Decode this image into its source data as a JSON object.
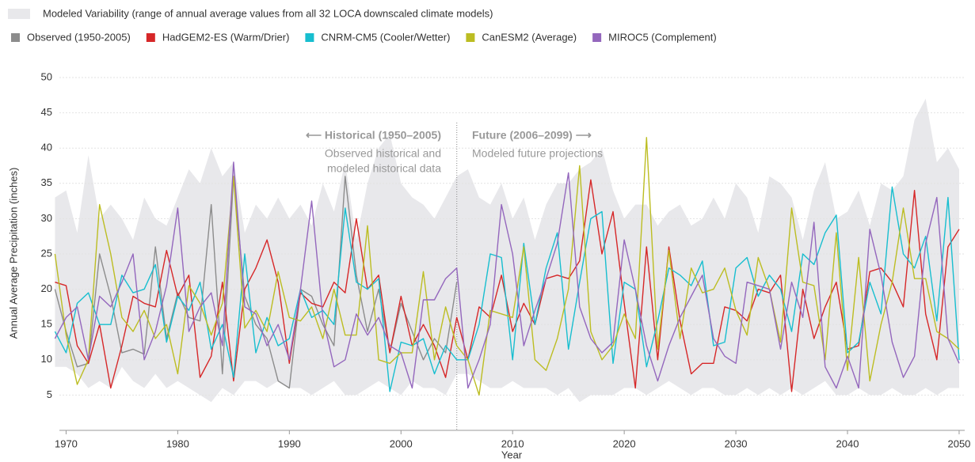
{
  "chart_data": {
    "type": "line",
    "x_label": "Year",
    "y_label": "Annual Average Precipitation (inches)",
    "x": [
      1969,
      1970,
      1971,
      1972,
      1973,
      1974,
      1975,
      1976,
      1977,
      1978,
      1979,
      1980,
      1981,
      1982,
      1983,
      1984,
      1985,
      1986,
      1987,
      1988,
      1989,
      1990,
      1991,
      1992,
      1993,
      1994,
      1995,
      1996,
      1997,
      1998,
      1999,
      2000,
      2001,
      2002,
      2003,
      2004,
      2005,
      2006,
      2007,
      2008,
      2009,
      2010,
      2011,
      2012,
      2013,
      2014,
      2015,
      2016,
      2017,
      2018,
      2019,
      2020,
      2021,
      2022,
      2023,
      2024,
      2025,
      2026,
      2027,
      2028,
      2029,
      2030,
      2031,
      2032,
      2033,
      2034,
      2035,
      2036,
      2037,
      2038,
      2039,
      2040,
      2041,
      2042,
      2043,
      2044,
      2045,
      2046,
      2047,
      2048,
      2049,
      2050
    ],
    "xlim": [
      1969.4,
      2050.5
    ],
    "xticks": [
      1970,
      1980,
      1990,
      2000,
      2010,
      2020,
      2030,
      2040,
      2050
    ],
    "ylim": [
      0,
      50
    ],
    "yticks": [
      5,
      10,
      15,
      20,
      25,
      30,
      35,
      40,
      45,
      50
    ],
    "grid": true,
    "divider_x": 2005,
    "annotations": [
      "⟵ Historical (1950–2005)",
      "Observed historical and",
      "modeled historical data",
      "Future (2006–2099) ⟶",
      "Modeled future projections"
    ],
    "band": {
      "name": "Modeled Variability (range of annual average values from all 32 LOCA downscaled climate models)",
      "color": "#e8e8eb",
      "max": [
        33,
        34,
        28,
        39,
        30,
        32,
        30,
        27,
        33,
        30,
        29,
        33,
        37,
        35,
        40,
        36,
        38,
        28,
        32,
        30,
        33,
        30,
        32,
        29,
        35,
        31,
        38,
        27,
        35,
        40,
        42,
        35,
        33,
        32,
        30,
        33,
        36,
        37,
        33,
        32,
        35,
        30,
        33,
        27,
        32,
        35,
        35,
        37,
        38,
        40,
        34,
        30,
        32,
        32,
        29,
        31,
        32,
        29,
        30,
        33,
        30,
        35,
        33,
        28,
        36,
        35,
        33,
        27,
        34,
        38,
        30,
        31,
        34,
        29,
        35,
        34,
        36,
        44,
        47,
        38,
        40,
        37
      ],
      "min": [
        9,
        9,
        8,
        6,
        7,
        6,
        9,
        7,
        6,
        8,
        6,
        7,
        6,
        5,
        4,
        6,
        5,
        7,
        7,
        6,
        7,
        6,
        6,
        5,
        6,
        7,
        5,
        5,
        6,
        7,
        6,
        5,
        7,
        6,
        6,
        5,
        8,
        8,
        7,
        6,
        6,
        7,
        6,
        6,
        6,
        5,
        6,
        4,
        5,
        5,
        5,
        6,
        6,
        5,
        6,
        7,
        6,
        5,
        6,
        6,
        5,
        5,
        6,
        5,
        6,
        5,
        6,
        5,
        6,
        7,
        5,
        5,
        6,
        5,
        5,
        6,
        5,
        5,
        6,
        5,
        6,
        6
      ]
    },
    "series": [
      {
        "name": "Observed (1950-2005)",
        "color": "#8c8c8c",
        "values": [
          20,
          14,
          9,
          9.5,
          25,
          19,
          11,
          11.5,
          10.8,
          26,
          13,
          19.5,
          16,
          15.5,
          32,
          8,
          36,
          19,
          15,
          13,
          7,
          6,
          20,
          19,
          15,
          12,
          36,
          22,
          14,
          20,
          11,
          18,
          14,
          10,
          13,
          11,
          21,
          null,
          null,
          null,
          null,
          null,
          null,
          null,
          null,
          null,
          null,
          null,
          null,
          null,
          null,
          null,
          null,
          null,
          null,
          null,
          null,
          null,
          null,
          null,
          null,
          null,
          null,
          null,
          null,
          null,
          null,
          null,
          null,
          null,
          null,
          null,
          null,
          null,
          null,
          null,
          null,
          null,
          null,
          null,
          null,
          null
        ]
      },
      {
        "name": "HadGEM2-ES (Warm/Drier)",
        "color": "#d62728",
        "values": [
          21,
          20.5,
          12,
          9.5,
          15,
          6,
          12,
          19,
          18,
          17.5,
          25.5,
          19,
          22,
          7.5,
          10.5,
          21,
          7,
          20,
          23,
          27,
          21,
          9.5,
          19.5,
          18,
          17.5,
          21,
          19.5,
          30,
          20,
          22,
          11,
          19,
          12,
          15,
          12,
          7.5,
          16,
          10,
          17.5,
          16,
          22,
          14,
          18,
          15,
          21.5,
          22,
          21.5,
          24,
          35.5,
          25,
          31,
          18,
          6,
          26,
          10,
          26,
          15.5,
          8,
          9.5,
          9.5,
          17.5,
          17,
          15.5,
          20,
          19.5,
          22,
          5.5,
          20,
          13,
          17.5,
          21,
          11.5,
          12,
          22.5,
          23,
          21,
          17.5,
          34,
          16.5,
          10,
          26,
          28.5
        ]
      },
      {
        "name": "CNRM-CM5 (Cooler/Wetter)",
        "color": "#17becf",
        "values": [
          14,
          11,
          18,
          19.5,
          15,
          15,
          22,
          19.5,
          20,
          23.5,
          12.5,
          19,
          17,
          21,
          11.5,
          15,
          7.5,
          25,
          11,
          16,
          12,
          13,
          20,
          16,
          17,
          15,
          31.5,
          21,
          20,
          21.5,
          5.5,
          12.5,
          12,
          13,
          8,
          12,
          10,
          10,
          15,
          25,
          24.5,
          10,
          26.5,
          15,
          23,
          28,
          11.5,
          21,
          30,
          31,
          9.5,
          21,
          20,
          9,
          15.5,
          23,
          22,
          20.5,
          24,
          12,
          12.5,
          23,
          24.5,
          19,
          22,
          20,
          14,
          25,
          23.5,
          28,
          30.5,
          11,
          12.5,
          21,
          16.5,
          34.5,
          25,
          23,
          27.5,
          15.5,
          33,
          10
        ]
      },
      {
        "name": "CanESM2 (Average)",
        "color": "#bcbd22",
        "values": [
          25,
          13.5,
          6.5,
          10,
          32,
          25,
          16,
          14,
          17,
          13,
          15,
          8,
          20.5,
          18,
          13.5,
          18,
          36,
          14.5,
          17,
          14,
          22.5,
          16,
          15.5,
          17.5,
          13,
          20,
          13.5,
          13.5,
          29,
          10,
          9.5,
          11,
          11,
          22.5,
          10,
          17.5,
          12,
          10,
          5,
          17,
          16.5,
          16,
          26,
          10,
          8.5,
          13,
          20,
          37.5,
          14,
          10,
          12,
          16.5,
          13,
          41.5,
          11.5,
          25.5,
          13,
          23,
          19.5,
          20,
          23,
          17,
          13.5,
          24.5,
          20,
          12.5,
          31.5,
          21,
          20.5,
          10,
          28,
          8.5,
          24.5,
          7,
          15,
          21,
          31.5,
          21.5,
          21.5,
          14,
          13,
          11.5
        ]
      },
      {
        "name": "MIROC5 (Complement)",
        "color": "#9467bd",
        "values": [
          13,
          16,
          17.5,
          10,
          19,
          17.5,
          21,
          25,
          10,
          14,
          20.5,
          31.5,
          14,
          17.5,
          19.5,
          12,
          38,
          17.5,
          16.5,
          12,
          15,
          10,
          20,
          32.5,
          16,
          9,
          10,
          16.5,
          13.5,
          16,
          12,
          11,
          6,
          18.5,
          18.5,
          21.5,
          23,
          6,
          10,
          15,
          32,
          25,
          12,
          17,
          21.5,
          26.5,
          36.5,
          17.5,
          13,
          11,
          12.5,
          27,
          20,
          12,
          7,
          12,
          16,
          19,
          22,
          13,
          10.5,
          9.5,
          21,
          20.5,
          20,
          11.5,
          21,
          16,
          29.5,
          9,
          6,
          10.5,
          6,
          28.5,
          22,
          12.5,
          7.5,
          10.5,
          26.5,
          33,
          13,
          9.5
        ]
      }
    ]
  }
}
